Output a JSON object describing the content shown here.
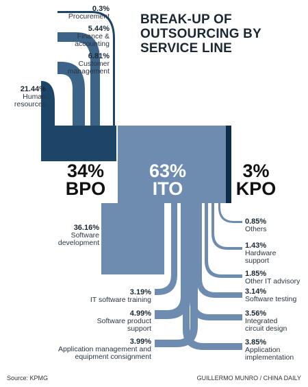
{
  "title": "BREAK-UP OF OUTSOURCING BY SERVICE LINE",
  "colors": {
    "bpo": "#1d4568",
    "bpo_light": "#3b6488",
    "ito": "#6d8cb0",
    "kpo": "#0f2c4d",
    "text": "#1b2733"
  },
  "chart_data": {
    "type": "sankey",
    "title": "BREAK-UP OF OUTSOURCING BY SERVICE LINE",
    "groups": [
      {
        "id": "bpo",
        "pct_label": "34%",
        "name": "BPO",
        "value": 34
      },
      {
        "id": "ito",
        "pct_label": "63%",
        "name": "ITO",
        "value": 63
      },
      {
        "id": "kpo",
        "pct_label": "3%",
        "name": "KPO",
        "value": 3
      }
    ],
    "bpo_items": [
      {
        "pct": "0.3%",
        "name": "Procurement",
        "value": 0.3
      },
      {
        "pct": "5.44%",
        "name": "Finance &\naccounting",
        "value": 5.44
      },
      {
        "pct": "6.81%",
        "name": "Customer\nmanagement",
        "value": 6.81
      },
      {
        "pct": "21.44%",
        "name": "Human\nresources",
        "value": 21.44
      }
    ],
    "ito_left": [
      {
        "pct": "36.16%",
        "name": "Software\ndevelopment",
        "value": 36.16
      },
      {
        "pct": "3.19%",
        "name": "IT software training",
        "value": 3.19
      },
      {
        "pct": "4.99%",
        "name": "Software product\nsupport",
        "value": 4.99
      },
      {
        "pct": "3.99%",
        "name": "Application management and\nequipment consignment",
        "value": 3.99
      }
    ],
    "ito_right": [
      {
        "pct": "0.85%",
        "name": "Others",
        "value": 0.85
      },
      {
        "pct": "1.43%",
        "name": "Hardware\nsupport",
        "value": 1.43
      },
      {
        "pct": "1.85%",
        "name": "Other IT advisory",
        "value": 1.85
      },
      {
        "pct": "3.14%",
        "name": "Software testing",
        "value": 3.14
      },
      {
        "pct": "3.56%",
        "name": "Integrated\ncircuit design",
        "value": 3.56
      },
      {
        "pct": "3.85%",
        "name": "Application\nimplementation",
        "value": 3.85
      }
    ]
  },
  "footer": {
    "source": "Source: KPMG",
    "credit": "GUILLERMO MUNRO / CHINA DAILY"
  }
}
